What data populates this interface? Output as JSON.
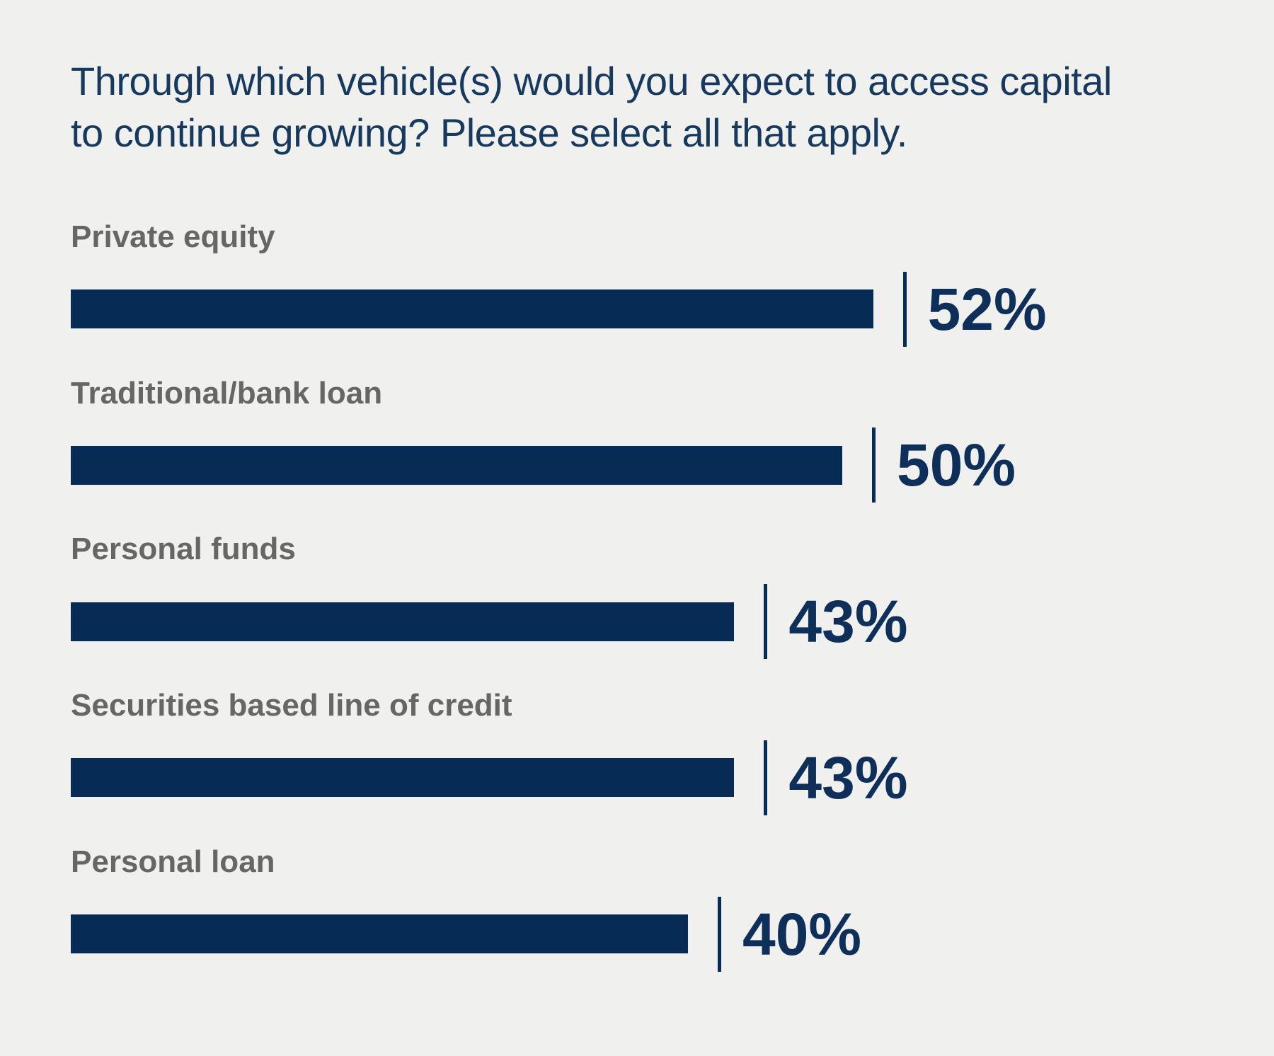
{
  "colors": {
    "background": "#f0f0ee",
    "bar": "#062c55",
    "title": "#17395d",
    "label": "#666666",
    "value": "#0e2f59"
  },
  "header": {
    "title_line1": "Through which vehicle(s) would you expect to access capital",
    "title_line2": "to continue growing? Please select all that apply."
  },
  "chart_data": {
    "type": "bar",
    "orientation": "horizontal",
    "title": "Through which vehicle(s) would you expect to access capital to continue growing? Please select all that apply.",
    "categories": [
      "Private equity",
      "Traditional/bank loan",
      "Personal funds",
      "Securities based line of credit",
      "Personal loan"
    ],
    "values": [
      52,
      50,
      43,
      43,
      40
    ],
    "value_labels": [
      "52%",
      "50%",
      "43%",
      "43%",
      "40%"
    ],
    "value_suffix": "%",
    "xlabel": "",
    "ylabel": "",
    "xlim": [
      0,
      100
    ],
    "grid": false,
    "legend": false,
    "bar_color": "#062c55",
    "label_position": "above-bar",
    "value_position": "right-of-bar-after-tick"
  }
}
